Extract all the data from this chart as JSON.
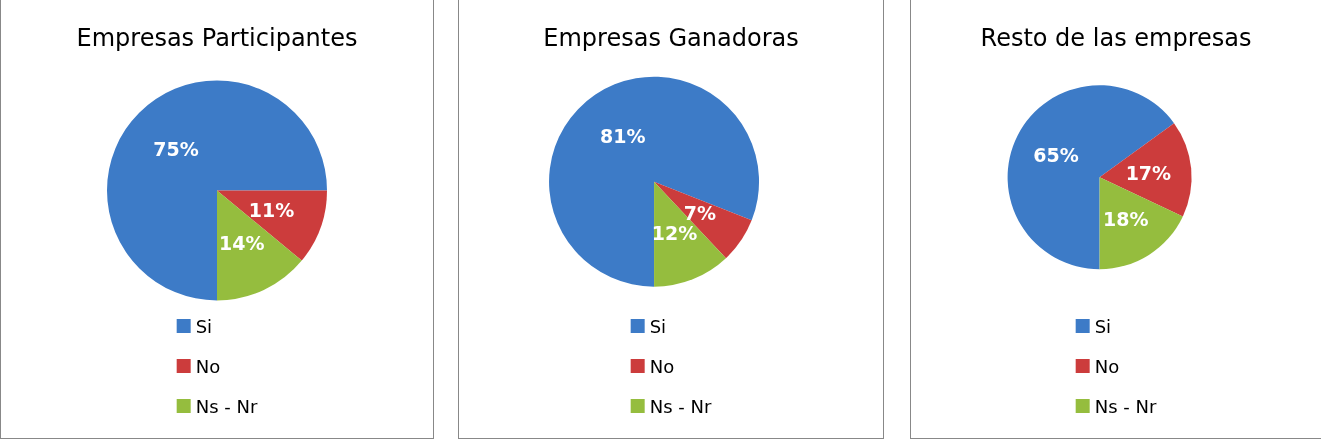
{
  "chart_data": [
    {
      "type": "pie",
      "title": "Empresas Participantes",
      "categories": [
        "Si",
        "No",
        "Ns - Nr"
      ],
      "values": [
        75,
        11,
        14
      ],
      "value_labels": [
        "75%",
        "11%",
        "14%"
      ],
      "colors": [
        "#3d7bc7",
        "#cc3c3c",
        "#95bd3e"
      ],
      "legend": "bottom"
    },
    {
      "type": "pie",
      "title": "Empresas Ganadoras",
      "categories": [
        "Si",
        "No",
        "Ns - Nr"
      ],
      "values": [
        81,
        7,
        12
      ],
      "value_labels": [
        "81%",
        "7%",
        "12%"
      ],
      "colors": [
        "#3d7bc7",
        "#cc3c3c",
        "#95bd3e"
      ],
      "legend": "bottom"
    },
    {
      "type": "pie",
      "title": "Resto de las empresas",
      "categories": [
        "Si",
        "No",
        "Ns - Nr"
      ],
      "values": [
        65,
        17,
        18
      ],
      "value_labels": [
        "65%",
        "17%",
        "18%"
      ],
      "colors": [
        "#3d7bc7",
        "#cc3c3c",
        "#95bd3e"
      ],
      "legend": "bottom"
    }
  ]
}
